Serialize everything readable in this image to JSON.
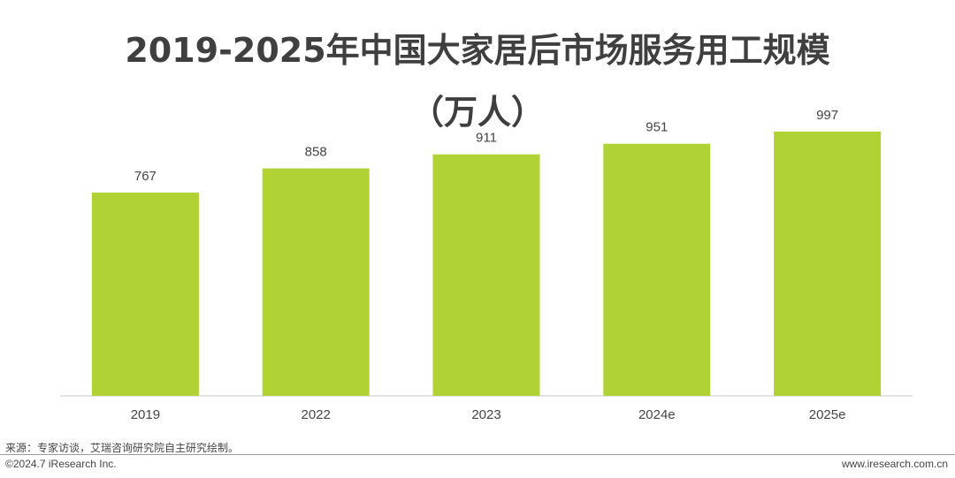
{
  "chart_data": {
    "type": "bar",
    "title_line_1": "2019-2025年中国大家居后市场服务用工规模",
    "title_line_2": "（万人）",
    "categories": [
      "2019",
      "2022",
      "2023",
      "2024e",
      "2025e"
    ],
    "values": [
      767,
      858,
      911,
      951,
      997
    ],
    "data_labels": [
      "767",
      "858",
      "911",
      "951",
      "997"
    ],
    "xlabel": "",
    "ylabel": "",
    "ylim": [
      0,
      1100
    ],
    "grid": false,
    "legend": "none",
    "bar_color": "#b1d234"
  },
  "source": "来源：专家访谈，艾瑞咨询研究院自主研究绘制。",
  "footer": {
    "copyright": "©2024.7 iResearch Inc.",
    "website": "www.iresearch.com.cn"
  }
}
